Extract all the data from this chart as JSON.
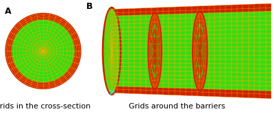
{
  "panel_A_label": "A",
  "panel_B_label": "B",
  "caption_A": "Grids in the cross-section",
  "caption_B": "Grids around the barriers",
  "fig_width": 4.0,
  "fig_height": 1.69,
  "dpi": 100,
  "background_color": "#ffffff",
  "green_fill": "#33dd11",
  "red_color": "#cc2200",
  "orange_color": "#dd5500",
  "yellow_grid": "#ffaa00",
  "label_fontsize": 9,
  "caption_fontsize": 8,
  "tube_green": "#22cc00",
  "barrier_red": "#bb2200"
}
